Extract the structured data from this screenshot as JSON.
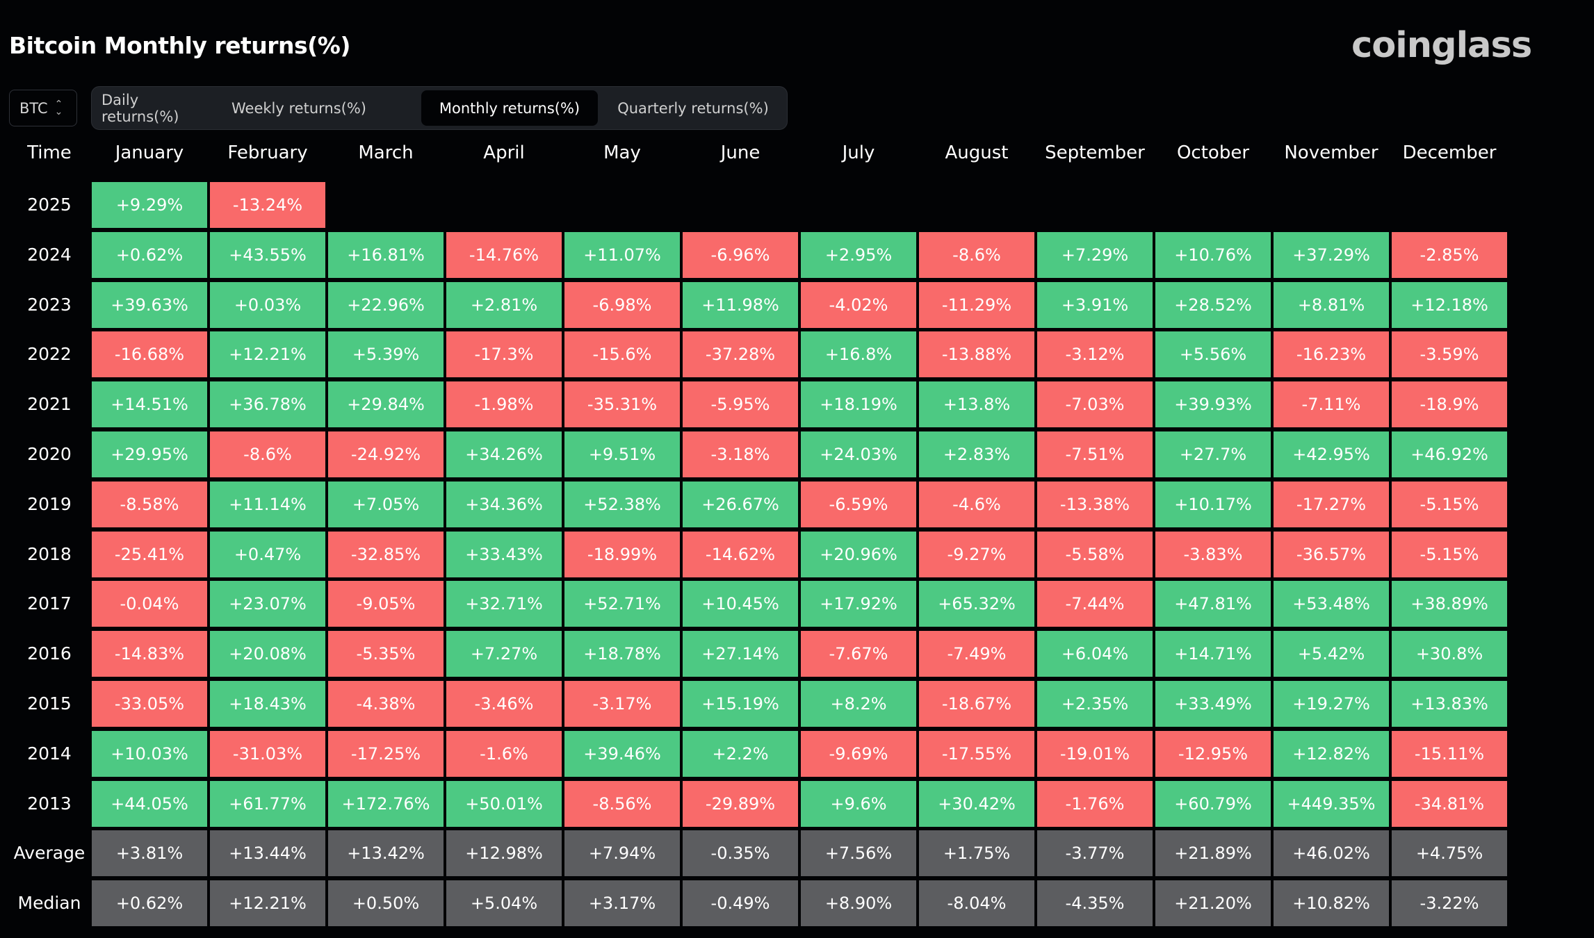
{
  "title": "Bitcoin Monthly returns(%)",
  "brand": "coinglass",
  "asset_selector": {
    "value": "BTC"
  },
  "tabs": [
    {
      "label": "Daily returns(%)",
      "active": false
    },
    {
      "label": "Weekly returns(%)",
      "active": false
    },
    {
      "label": "Monthly returns(%)",
      "active": true
    },
    {
      "label": "Quarterly returns(%)",
      "active": false
    }
  ],
  "colors": {
    "positive": "#4dc983",
    "negative": "#f96a6a",
    "summary": "#5c5d60",
    "background": "#020305"
  },
  "chart_data": {
    "type": "table",
    "corner_label": "Time",
    "columns": [
      "January",
      "February",
      "March",
      "April",
      "May",
      "June",
      "July",
      "August",
      "September",
      "October",
      "November",
      "December"
    ],
    "rows": [
      {
        "label": "2025",
        "values": [
          "+9.29%",
          "-13.24%"
        ]
      },
      {
        "label": "2024",
        "values": [
          "+0.62%",
          "+43.55%",
          "+16.81%",
          "-14.76%",
          "+11.07%",
          "-6.96%",
          "+2.95%",
          "-8.6%",
          "+7.29%",
          "+10.76%",
          "+37.29%",
          "-2.85%"
        ]
      },
      {
        "label": "2023",
        "values": [
          "+39.63%",
          "+0.03%",
          "+22.96%",
          "+2.81%",
          "-6.98%",
          "+11.98%",
          "-4.02%",
          "-11.29%",
          "+3.91%",
          "+28.52%",
          "+8.81%",
          "+12.18%"
        ]
      },
      {
        "label": "2022",
        "values": [
          "-16.68%",
          "+12.21%",
          "+5.39%",
          "-17.3%",
          "-15.6%",
          "-37.28%",
          "+16.8%",
          "-13.88%",
          "-3.12%",
          "+5.56%",
          "-16.23%",
          "-3.59%"
        ]
      },
      {
        "label": "2021",
        "values": [
          "+14.51%",
          "+36.78%",
          "+29.84%",
          "-1.98%",
          "-35.31%",
          "-5.95%",
          "+18.19%",
          "+13.8%",
          "-7.03%",
          "+39.93%",
          "-7.11%",
          "-18.9%"
        ]
      },
      {
        "label": "2020",
        "values": [
          "+29.95%",
          "-8.6%",
          "-24.92%",
          "+34.26%",
          "+9.51%",
          "-3.18%",
          "+24.03%",
          "+2.83%",
          "-7.51%",
          "+27.7%",
          "+42.95%",
          "+46.92%"
        ]
      },
      {
        "label": "2019",
        "values": [
          "-8.58%",
          "+11.14%",
          "+7.05%",
          "+34.36%",
          "+52.38%",
          "+26.67%",
          "-6.59%",
          "-4.6%",
          "-13.38%",
          "+10.17%",
          "-17.27%",
          "-5.15%"
        ]
      },
      {
        "label": "2018",
        "values": [
          "-25.41%",
          "+0.47%",
          "-32.85%",
          "+33.43%",
          "-18.99%",
          "-14.62%",
          "+20.96%",
          "-9.27%",
          "-5.58%",
          "-3.83%",
          "-36.57%",
          "-5.15%"
        ]
      },
      {
        "label": "2017",
        "values": [
          "-0.04%",
          "+23.07%",
          "-9.05%",
          "+32.71%",
          "+52.71%",
          "+10.45%",
          "+17.92%",
          "+65.32%",
          "-7.44%",
          "+47.81%",
          "+53.48%",
          "+38.89%"
        ]
      },
      {
        "label": "2016",
        "values": [
          "-14.83%",
          "+20.08%",
          "-5.35%",
          "+7.27%",
          "+18.78%",
          "+27.14%",
          "-7.67%",
          "-7.49%",
          "+6.04%",
          "+14.71%",
          "+5.42%",
          "+30.8%"
        ]
      },
      {
        "label": "2015",
        "values": [
          "-33.05%",
          "+18.43%",
          "-4.38%",
          "-3.46%",
          "-3.17%",
          "+15.19%",
          "+8.2%",
          "-18.67%",
          "+2.35%",
          "+33.49%",
          "+19.27%",
          "+13.83%"
        ]
      },
      {
        "label": "2014",
        "values": [
          "+10.03%",
          "-31.03%",
          "-17.25%",
          "-1.6%",
          "+39.46%",
          "+2.2%",
          "-9.69%",
          "-17.55%",
          "-19.01%",
          "-12.95%",
          "+12.82%",
          "-15.11%"
        ]
      },
      {
        "label": "2013",
        "values": [
          "+44.05%",
          "+61.77%",
          "+172.76%",
          "+50.01%",
          "-8.56%",
          "-29.89%",
          "+9.6%",
          "+30.42%",
          "-1.76%",
          "+60.79%",
          "+449.35%",
          "-34.81%"
        ]
      }
    ],
    "summary_rows": [
      {
        "label": "Average",
        "values": [
          "+3.81%",
          "+13.44%",
          "+13.42%",
          "+12.98%",
          "+7.94%",
          "-0.35%",
          "+7.56%",
          "+1.75%",
          "-3.77%",
          "+21.89%",
          "+46.02%",
          "+4.75%"
        ]
      },
      {
        "label": "Median",
        "values": [
          "+0.62%",
          "+12.21%",
          "+0.50%",
          "+5.04%",
          "+3.17%",
          "-0.49%",
          "+8.90%",
          "-8.04%",
          "-4.35%",
          "+21.20%",
          "+10.82%",
          "-3.22%"
        ]
      }
    ]
  }
}
